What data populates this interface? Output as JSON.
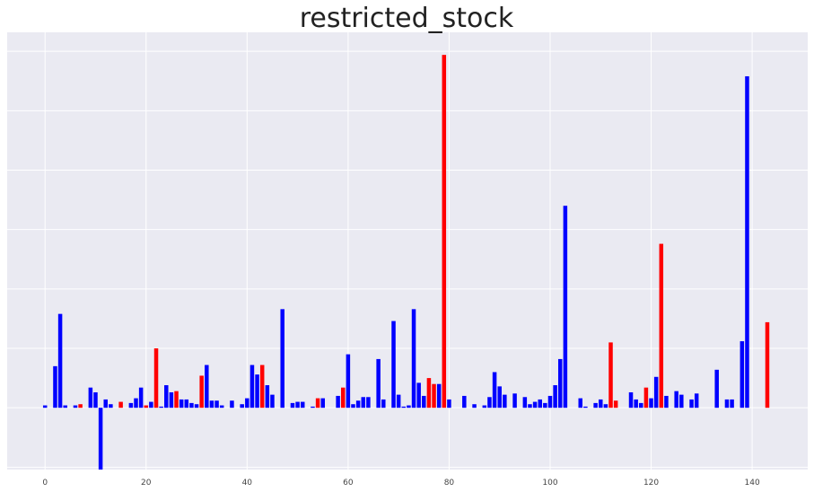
{
  "chart_data": {
    "type": "bar",
    "title": "restricted_stock",
    "xlabel": "",
    "ylabel": "",
    "xlim": [
      -7.5,
      151
    ],
    "ylim": [
      -52,
      316
    ],
    "x_ticks": [
      0,
      20,
      40,
      60,
      80,
      100,
      120,
      140
    ],
    "x_tick_labels": [
      "0",
      "20",
      "40",
      "60",
      "80",
      "100",
      "120",
      "140"
    ],
    "y_gridlines": [
      -50,
      0,
      50,
      100,
      150,
      200,
      250,
      300
    ],
    "grid": true,
    "background_color": "#EAEAF2",
    "colors": {
      "positive_class": "#0000FF",
      "negative_class": "#FF0000"
    },
    "bars": [
      {
        "x": 0,
        "value": 2,
        "color": "blue"
      },
      {
        "x": 2,
        "value": 35,
        "color": "blue"
      },
      {
        "x": 3,
        "value": 79,
        "color": "blue"
      },
      {
        "x": 4,
        "value": 2,
        "color": "blue"
      },
      {
        "x": 6,
        "value": 2,
        "color": "blue"
      },
      {
        "x": 7,
        "value": 3,
        "color": "red"
      },
      {
        "x": 9,
        "value": 17,
        "color": "blue"
      },
      {
        "x": 10,
        "value": 13,
        "color": "blue"
      },
      {
        "x": 11,
        "value": -52,
        "color": "blue"
      },
      {
        "x": 12,
        "value": 7,
        "color": "blue"
      },
      {
        "x": 13,
        "value": 3,
        "color": "blue"
      },
      {
        "x": 15,
        "value": 5,
        "color": "red"
      },
      {
        "x": 17,
        "value": 4,
        "color": "blue"
      },
      {
        "x": 18,
        "value": 8,
        "color": "blue"
      },
      {
        "x": 19,
        "value": 17,
        "color": "blue"
      },
      {
        "x": 20,
        "value": 2,
        "color": "red"
      },
      {
        "x": 21,
        "value": 5,
        "color": "blue"
      },
      {
        "x": 22,
        "value": 50,
        "color": "red"
      },
      {
        "x": 23,
        "value": 1,
        "color": "blue"
      },
      {
        "x": 24,
        "value": 19,
        "color": "blue"
      },
      {
        "x": 25,
        "value": 13,
        "color": "blue"
      },
      {
        "x": 26,
        "value": 14,
        "color": "red"
      },
      {
        "x": 27,
        "value": 7,
        "color": "blue"
      },
      {
        "x": 28,
        "value": 7,
        "color": "blue"
      },
      {
        "x": 29,
        "value": 4,
        "color": "blue"
      },
      {
        "x": 30,
        "value": 3,
        "color": "blue"
      },
      {
        "x": 31,
        "value": 27,
        "color": "red"
      },
      {
        "x": 32,
        "value": 36,
        "color": "blue"
      },
      {
        "x": 33,
        "value": 6,
        "color": "blue"
      },
      {
        "x": 34,
        "value": 6,
        "color": "blue"
      },
      {
        "x": 35,
        "value": 2,
        "color": "blue"
      },
      {
        "x": 37,
        "value": 6,
        "color": "blue"
      },
      {
        "x": 39,
        "value": 3,
        "color": "blue"
      },
      {
        "x": 40,
        "value": 8,
        "color": "blue"
      },
      {
        "x": 41,
        "value": 36,
        "color": "blue"
      },
      {
        "x": 42,
        "value": 28,
        "color": "blue"
      },
      {
        "x": 43,
        "value": 36,
        "color": "red"
      },
      {
        "x": 44,
        "value": 19,
        "color": "blue"
      },
      {
        "x": 45,
        "value": 11,
        "color": "blue"
      },
      {
        "x": 47,
        "value": 83,
        "color": "blue"
      },
      {
        "x": 49,
        "value": 4,
        "color": "blue"
      },
      {
        "x": 50,
        "value": 5,
        "color": "blue"
      },
      {
        "x": 51,
        "value": 5,
        "color": "blue"
      },
      {
        "x": 53,
        "value": 1,
        "color": "blue"
      },
      {
        "x": 54,
        "value": 8,
        "color": "red"
      },
      {
        "x": 55,
        "value": 8,
        "color": "blue"
      },
      {
        "x": 58,
        "value": 10,
        "color": "blue"
      },
      {
        "x": 59,
        "value": 17,
        "color": "red"
      },
      {
        "x": 60,
        "value": 45,
        "color": "blue"
      },
      {
        "x": 61,
        "value": 3,
        "color": "blue"
      },
      {
        "x": 62,
        "value": 6,
        "color": "blue"
      },
      {
        "x": 63,
        "value": 9,
        "color": "blue"
      },
      {
        "x": 64,
        "value": 9,
        "color": "blue"
      },
      {
        "x": 66,
        "value": 41,
        "color": "blue"
      },
      {
        "x": 67,
        "value": 7,
        "color": "blue"
      },
      {
        "x": 69,
        "value": 73,
        "color": "blue"
      },
      {
        "x": 70,
        "value": 11,
        "color": "blue"
      },
      {
        "x": 71,
        "value": 1,
        "color": "blue"
      },
      {
        "x": 72,
        "value": 2,
        "color": "blue"
      },
      {
        "x": 73,
        "value": 83,
        "color": "blue"
      },
      {
        "x": 74,
        "value": 21,
        "color": "blue"
      },
      {
        "x": 75,
        "value": 10,
        "color": "blue"
      },
      {
        "x": 76,
        "value": 25,
        "color": "red"
      },
      {
        "x": 77,
        "value": 20,
        "color": "red"
      },
      {
        "x": 78,
        "value": 20,
        "color": "blue"
      },
      {
        "x": 79,
        "value": 297,
        "color": "red"
      },
      {
        "x": 80,
        "value": 7,
        "color": "blue"
      },
      {
        "x": 83,
        "value": 10,
        "color": "blue"
      },
      {
        "x": 85,
        "value": 3,
        "color": "blue"
      },
      {
        "x": 87,
        "value": 2,
        "color": "blue"
      },
      {
        "x": 88,
        "value": 9,
        "color": "blue"
      },
      {
        "x": 89,
        "value": 30,
        "color": "blue"
      },
      {
        "x": 90,
        "value": 18,
        "color": "blue"
      },
      {
        "x": 91,
        "value": 11,
        "color": "blue"
      },
      {
        "x": 93,
        "value": 12,
        "color": "blue"
      },
      {
        "x": 95,
        "value": 9,
        "color": "blue"
      },
      {
        "x": 96,
        "value": 3,
        "color": "blue"
      },
      {
        "x": 97,
        "value": 5,
        "color": "blue"
      },
      {
        "x": 98,
        "value": 7,
        "color": "blue"
      },
      {
        "x": 99,
        "value": 4,
        "color": "blue"
      },
      {
        "x": 100,
        "value": 10,
        "color": "blue"
      },
      {
        "x": 101,
        "value": 19,
        "color": "blue"
      },
      {
        "x": 102,
        "value": 41,
        "color": "blue"
      },
      {
        "x": 103,
        "value": 170,
        "color": "blue"
      },
      {
        "x": 106,
        "value": 8,
        "color": "blue"
      },
      {
        "x": 107,
        "value": 1,
        "color": "blue"
      },
      {
        "x": 109,
        "value": 4,
        "color": "blue"
      },
      {
        "x": 110,
        "value": 7,
        "color": "blue"
      },
      {
        "x": 111,
        "value": 3,
        "color": "blue"
      },
      {
        "x": 112,
        "value": 55,
        "color": "red"
      },
      {
        "x": 113,
        "value": 6,
        "color": "red"
      },
      {
        "x": 116,
        "value": 13,
        "color": "blue"
      },
      {
        "x": 117,
        "value": 7,
        "color": "blue"
      },
      {
        "x": 118,
        "value": 4,
        "color": "blue"
      },
      {
        "x": 119,
        "value": 17,
        "color": "red"
      },
      {
        "x": 120,
        "value": 8,
        "color": "blue"
      },
      {
        "x": 121,
        "value": 26,
        "color": "blue"
      },
      {
        "x": 122,
        "value": 138,
        "color": "red"
      },
      {
        "x": 123,
        "value": 10,
        "color": "blue"
      },
      {
        "x": 125,
        "value": 14,
        "color": "blue"
      },
      {
        "x": 126,
        "value": 11,
        "color": "blue"
      },
      {
        "x": 128,
        "value": 7,
        "color": "blue"
      },
      {
        "x": 129,
        "value": 12,
        "color": "blue"
      },
      {
        "x": 133,
        "value": 32,
        "color": "blue"
      },
      {
        "x": 135,
        "value": 7,
        "color": "blue"
      },
      {
        "x": 136,
        "value": 7,
        "color": "blue"
      },
      {
        "x": 138,
        "value": 56,
        "color": "blue"
      },
      {
        "x": 139,
        "value": 279,
        "color": "blue"
      },
      {
        "x": 143,
        "value": 72,
        "color": "red"
      }
    ]
  }
}
